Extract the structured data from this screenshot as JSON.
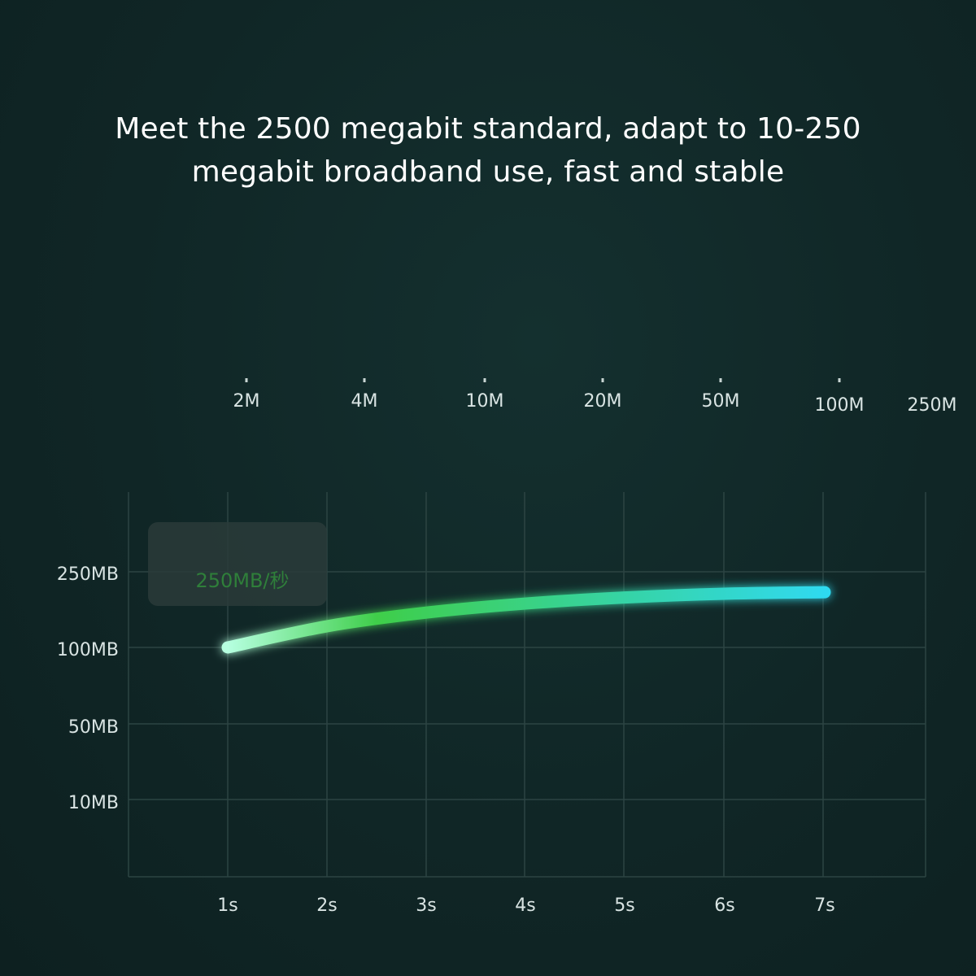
{
  "headline": {
    "line1": "Meet the 2500 megabit standard, adapt to 10-250",
    "line2": "megabit broadband use, fast and stable"
  },
  "bandwidth_scale": {
    "labels": [
      "2M",
      "4M",
      "10M",
      "20M",
      "50M",
      "100M",
      "250M"
    ],
    "gradient_start": "#3fce4a",
    "gradient_end": "#2fd9f0"
  },
  "chart_data": {
    "type": "line",
    "title": "",
    "xlabel": "",
    "ylabel": "",
    "x_categories": [
      "1s",
      "2s",
      "3s",
      "4s",
      "5s",
      "6s",
      "7s"
    ],
    "y_tick_labels": [
      "10MB",
      "50MB",
      "100MB",
      "250MB"
    ],
    "series": [
      {
        "x": [
          "1s",
          "2s",
          "3s",
          "4s",
          "5s",
          "6s",
          "7s"
        ],
        "y_fraction_between_100MB_and_250MB": [
          0.0,
          0.28,
          0.46,
          0.58,
          0.66,
          0.71,
          0.73
        ]
      }
    ],
    "annotation": "250MB/秒",
    "grid": true,
    "line_gradient": [
      "#b6ffe0",
      "#3fce4a",
      "#2fd9f0"
    ]
  },
  "colors": {
    "background": "#102626",
    "grid": "#2c4443",
    "annotation_box": "#2a3b3a",
    "annotation_text": "#2f7f3a"
  }
}
